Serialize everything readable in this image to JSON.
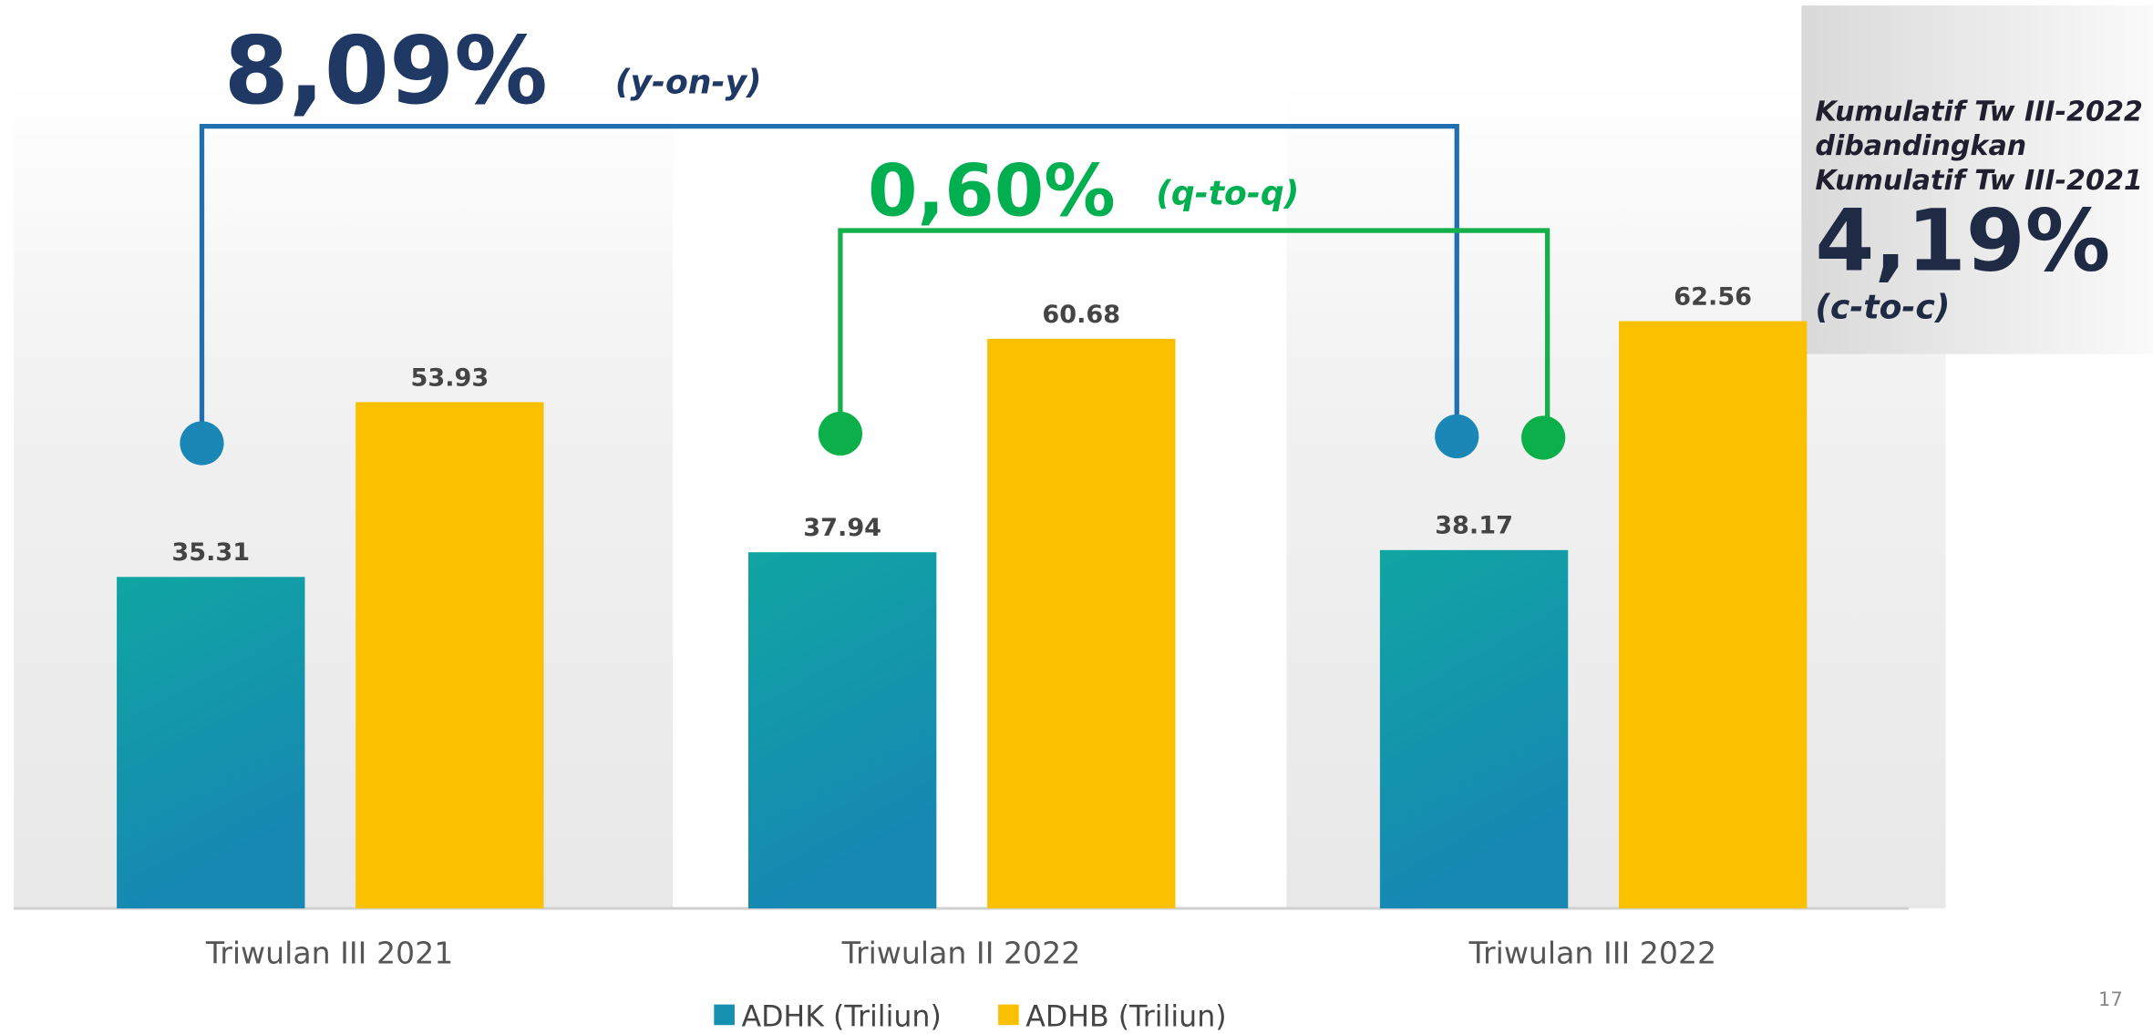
{
  "chart_data": {
    "type": "bar",
    "categories": [
      "Triwulan III 2021",
      "Triwulan II 2022",
      "Triwulan III 2022"
    ],
    "series": [
      {
        "name": "ADHK (Triliun)",
        "color": "#1590b0",
        "values": [
          35.31,
          37.94,
          38.17
        ]
      },
      {
        "name": "ADHB (Triliun)",
        "color": "#fbc000",
        "values": [
          53.93,
          60.68,
          62.56
        ]
      }
    ],
    "annotations": {
      "yoy_value": "8,09%",
      "yoy_label": "(y-on-y)",
      "qtq_value": "0,60%",
      "qtq_label": "(q-to-q)",
      "ctc_lines": [
        "Kumulatif Tw III-2022",
        "dibandingkan",
        "Kumulatif Tw III-2021"
      ],
      "ctc_value": "4,19%",
      "ctc_label": "(c-to-c)"
    },
    "page_number": "17"
  }
}
